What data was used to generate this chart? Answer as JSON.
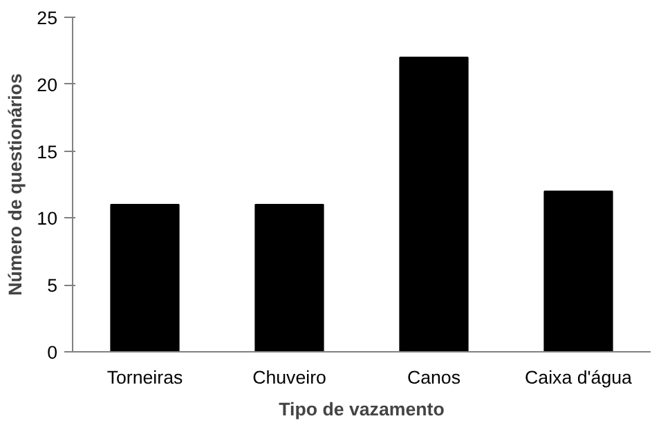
{
  "chart_data": {
    "type": "bar",
    "xlabel": "Tipo de vazamento",
    "ylabel": "Número de questionários",
    "categories": [
      "Torneiras",
      "Chuveiro",
      "Canos",
      "Caixa d'água"
    ],
    "values": [
      11,
      11,
      22,
      12
    ],
    "color": "#000000",
    "ylim": [
      0,
      25
    ],
    "yticks": [
      0,
      5,
      10,
      15,
      20,
      25
    ],
    "grid": false
  }
}
